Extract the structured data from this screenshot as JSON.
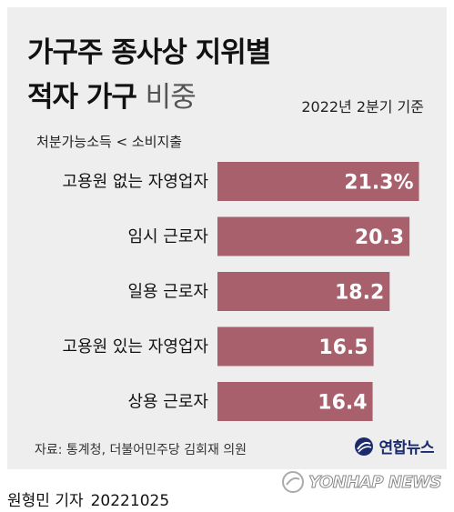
{
  "title": {
    "line1": "가구주 종사상 지위별",
    "line2_bold": "적자 가구",
    "line2_light": "비중"
  },
  "basis": "2022년 2분기 기준",
  "subtitle": "처분가능소득 < 소비지출",
  "source": "자료: 통계청, 더불어민주당 김회재 의원",
  "logo": {
    "name": "연합뉴스",
    "icon": "yonhap-globe-icon"
  },
  "footer": {
    "byline": "원형민 기자",
    "date": "20221025"
  },
  "watermark": {
    "text": "YONHAP NEWS",
    "icon": "yonhap-globe-icon"
  },
  "colors": {
    "bar": "#a8606d",
    "background": "#eeeeee"
  },
  "chart_data": {
    "type": "bar",
    "orientation": "horizontal",
    "unit": "%",
    "categories": [
      "고용원 없는 자영업자",
      "임시 근로자",
      "일용 근로자",
      "고용원 있는 자영업자",
      "상용 근로자"
    ],
    "values": [
      21.3,
      20.3,
      18.2,
      16.5,
      16.4
    ],
    "value_labels": [
      "21.3%",
      "20.3",
      "18.2",
      "16.5",
      "16.4"
    ],
    "grid": false,
    "legend": "none"
  }
}
